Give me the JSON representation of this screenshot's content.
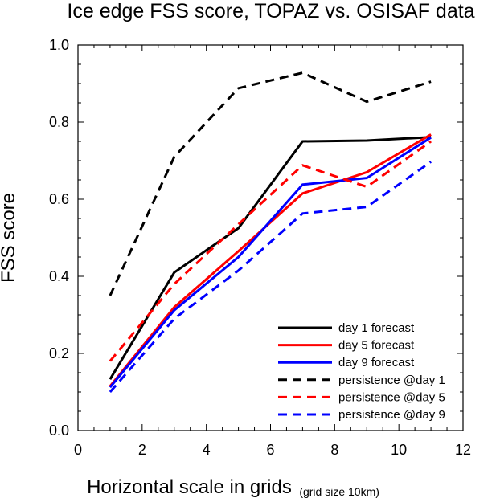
{
  "chart_data": {
    "type": "line",
    "title": "Ice edge FSS score, TOPAZ vs. OSISAF data",
    "xlabel": "Horizontal scale in grids",
    "xlabel_note": "(grid size 10km)",
    "ylabel": "FSS score",
    "xlim": [
      0,
      12
    ],
    "ylim": [
      0,
      1.0
    ],
    "xticks": [
      0,
      2,
      4,
      6,
      8,
      10,
      12
    ],
    "xtick_labels": [
      "0",
      "2",
      "4",
      "6",
      "8",
      "10",
      "12"
    ],
    "yticks": [
      0,
      0.2,
      0.4,
      0.6,
      0.8,
      1.0
    ],
    "ytick_labels": [
      "0.0",
      "0.2",
      "0.4",
      "0.6",
      "0.8",
      "1.0"
    ],
    "x": [
      1,
      3,
      5,
      7,
      9,
      11
    ],
    "grid": false,
    "legend_position": "bottom-right",
    "series": [
      {
        "name": "day 1 forecast",
        "values": [
          0.133,
          0.41,
          0.525,
          0.75,
          0.752,
          0.761
        ],
        "color": "#000000",
        "dash": "solid"
      },
      {
        "name": "day 5 forecast",
        "values": [
          0.115,
          0.32,
          0.465,
          0.615,
          0.67,
          0.768
        ],
        "color": "#ff0000",
        "dash": "solid"
      },
      {
        "name": "day 9 forecast",
        "values": [
          0.112,
          0.312,
          0.45,
          0.638,
          0.655,
          0.76
        ],
        "color": "#0000ff",
        "dash": "solid"
      },
      {
        "name": "persistence @day 1",
        "values": [
          0.35,
          0.71,
          0.888,
          0.928,
          0.853,
          0.905
        ],
        "color": "#000000",
        "dash": "dashed"
      },
      {
        "name": "persistence @day 5",
        "values": [
          0.18,
          0.38,
          0.535,
          0.688,
          0.632,
          0.75
        ],
        "color": "#ff0000",
        "dash": "dashed"
      },
      {
        "name": "persistence @day 9",
        "values": [
          0.1,
          0.29,
          0.415,
          0.563,
          0.58,
          0.697
        ],
        "color": "#0000ff",
        "dash": "dashed"
      }
    ]
  }
}
